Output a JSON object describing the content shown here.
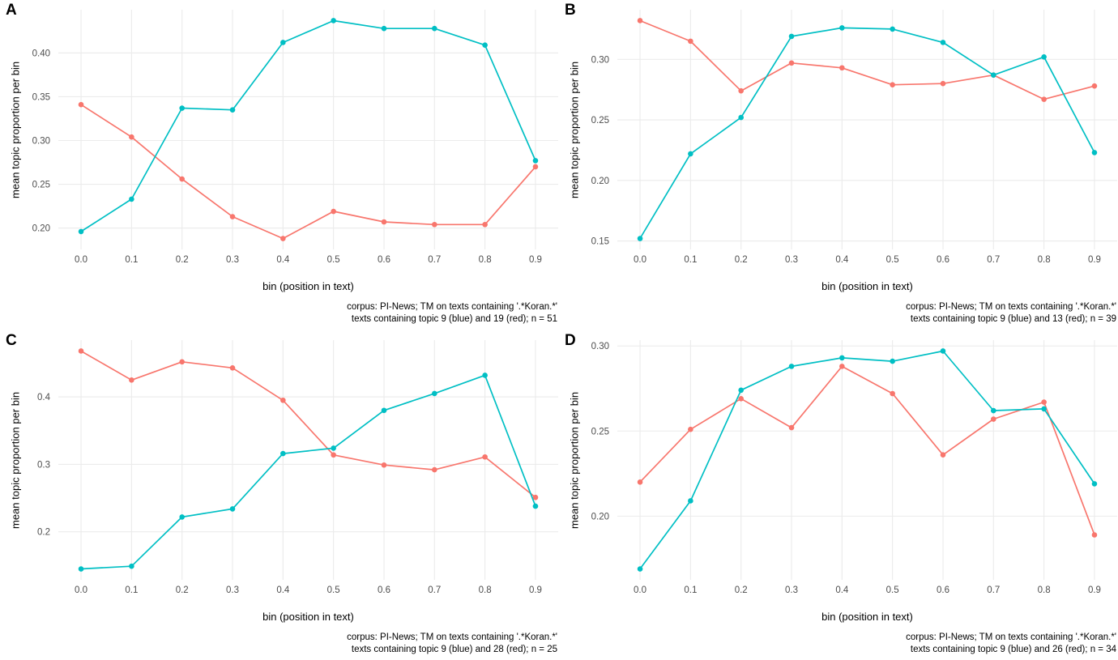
{
  "figure": {
    "background": "#FFFFFF",
    "grid_color": "#EBEBEB",
    "tick_text_color": "#4D4D4D",
    "blue_color": "#00BFC4",
    "red_color": "#F8766D"
  },
  "chart_data": [
    {
      "type": "line",
      "panel": "A",
      "title": "",
      "xlabel": "bin (position in text)",
      "ylabel": "mean topic proportion per bin",
      "x": [
        0.0,
        0.1,
        0.2,
        0.3,
        0.4,
        0.5,
        0.6,
        0.7,
        0.8,
        0.9
      ],
      "xtick_labels": [
        "0.0",
        "0.1",
        "0.2",
        "0.3",
        "0.4",
        "0.5",
        "0.6",
        "0.7",
        "0.8",
        "0.9"
      ],
      "yticks": [
        0.2,
        0.25,
        0.3,
        0.35,
        0.4
      ],
      "ytick_labels": [
        "0.20",
        "0.25",
        "0.30",
        "0.35",
        "0.40"
      ],
      "grid": true,
      "legend": "none",
      "series": [
        {
          "name": "topic 19 (red)",
          "color": "#F8766D",
          "values": [
            0.341,
            0.304,
            0.256,
            0.213,
            0.188,
            0.219,
            0.207,
            0.204,
            0.204,
            0.27
          ]
        },
        {
          "name": "topic 9 (blue)",
          "color": "#00BFC4",
          "values": [
            0.196,
            0.233,
            0.337,
            0.335,
            0.412,
            0.437,
            0.428,
            0.428,
            0.409,
            0.277
          ]
        }
      ],
      "caption_line1": "corpus: PI-News; TM on texts containing '.*Koran.*'",
      "caption_line2": "texts containing topic 9 (blue) and 19 (red); n = 51"
    },
    {
      "type": "line",
      "panel": "B",
      "title": "",
      "xlabel": "bin (position in text)",
      "ylabel": "mean topic proportion per bin",
      "x": [
        0.0,
        0.1,
        0.2,
        0.3,
        0.4,
        0.5,
        0.6,
        0.7,
        0.8,
        0.9
      ],
      "xtick_labels": [
        "0.0",
        "0.1",
        "0.2",
        "0.3",
        "0.4",
        "0.5",
        "0.6",
        "0.7",
        "0.8",
        "0.9"
      ],
      "yticks": [
        0.15,
        0.2,
        0.25,
        0.3
      ],
      "ytick_labels": [
        "0.15",
        "0.20",
        "0.25",
        "0.30"
      ],
      "grid": true,
      "legend": "none",
      "series": [
        {
          "name": "topic 13 (red)",
          "color": "#F8766D",
          "values": [
            0.332,
            0.315,
            0.274,
            0.297,
            0.293,
            0.279,
            0.28,
            0.287,
            0.267,
            0.278
          ]
        },
        {
          "name": "topic 9 (blue)",
          "color": "#00BFC4",
          "values": [
            0.152,
            0.222,
            0.252,
            0.319,
            0.326,
            0.325,
            0.314,
            0.287,
            0.302,
            0.223
          ]
        }
      ],
      "caption_line1": "corpus: PI-News; TM on texts containing '.*Koran.*'",
      "caption_line2": "texts containing topic 9 (blue) and 13 (red); n = 39"
    },
    {
      "type": "line",
      "panel": "C",
      "title": "",
      "xlabel": "bin (position in text)",
      "ylabel": "mean topic proportion per bin",
      "x": [
        0.0,
        0.1,
        0.2,
        0.3,
        0.4,
        0.5,
        0.6,
        0.7,
        0.8,
        0.9
      ],
      "xtick_labels": [
        "0.0",
        "0.1",
        "0.2",
        "0.3",
        "0.4",
        "0.5",
        "0.6",
        "0.7",
        "0.8",
        "0.9"
      ],
      "yticks": [
        0.2,
        0.3,
        0.4
      ],
      "ytick_labels": [
        "0.2",
        "0.3",
        "0.4"
      ],
      "grid": true,
      "legend": "none",
      "series": [
        {
          "name": "topic 28 (red)",
          "color": "#F8766D",
          "values": [
            0.468,
            0.425,
            0.452,
            0.443,
            0.395,
            0.314,
            0.299,
            0.292,
            0.311,
            0.251
          ]
        },
        {
          "name": "topic 9 (blue)",
          "color": "#00BFC4",
          "values": [
            0.145,
            0.149,
            0.222,
            0.234,
            0.316,
            0.324,
            0.38,
            0.405,
            0.432,
            0.238
          ]
        }
      ],
      "caption_line1": "corpus: PI-News; TM on texts containing '.*Koran.*'",
      "caption_line2": "texts containing topic 9 (blue) and 28 (red); n = 25"
    },
    {
      "type": "line",
      "panel": "D",
      "title": "",
      "xlabel": "bin (position in text)",
      "ylabel": "mean topic proportion per bin",
      "x": [
        0.0,
        0.1,
        0.2,
        0.3,
        0.4,
        0.5,
        0.6,
        0.7,
        0.8,
        0.9
      ],
      "xtick_labels": [
        "0.0",
        "0.1",
        "0.2",
        "0.3",
        "0.4",
        "0.5",
        "0.6",
        "0.7",
        "0.8",
        "0.9"
      ],
      "yticks": [
        0.2,
        0.25,
        0.3
      ],
      "ytick_labels": [
        "0.20",
        "0.25",
        "0.30"
      ],
      "grid": true,
      "legend": "none",
      "series": [
        {
          "name": "topic 26 (red)",
          "color": "#F8766D",
          "values": [
            0.22,
            0.251,
            0.269,
            0.252,
            0.288,
            0.272,
            0.236,
            0.257,
            0.267,
            0.189
          ]
        },
        {
          "name": "topic 9 (blue)",
          "color": "#00BFC4",
          "values": [
            0.169,
            0.209,
            0.274,
            0.288,
            0.293,
            0.291,
            0.297,
            0.262,
            0.263,
            0.219
          ]
        }
      ],
      "caption_line1": "corpus: PI-News; TM on texts containing '.*Koran.*'",
      "caption_line2": "texts containing topic 9 (blue) and 26 (red); n = 34"
    }
  ]
}
